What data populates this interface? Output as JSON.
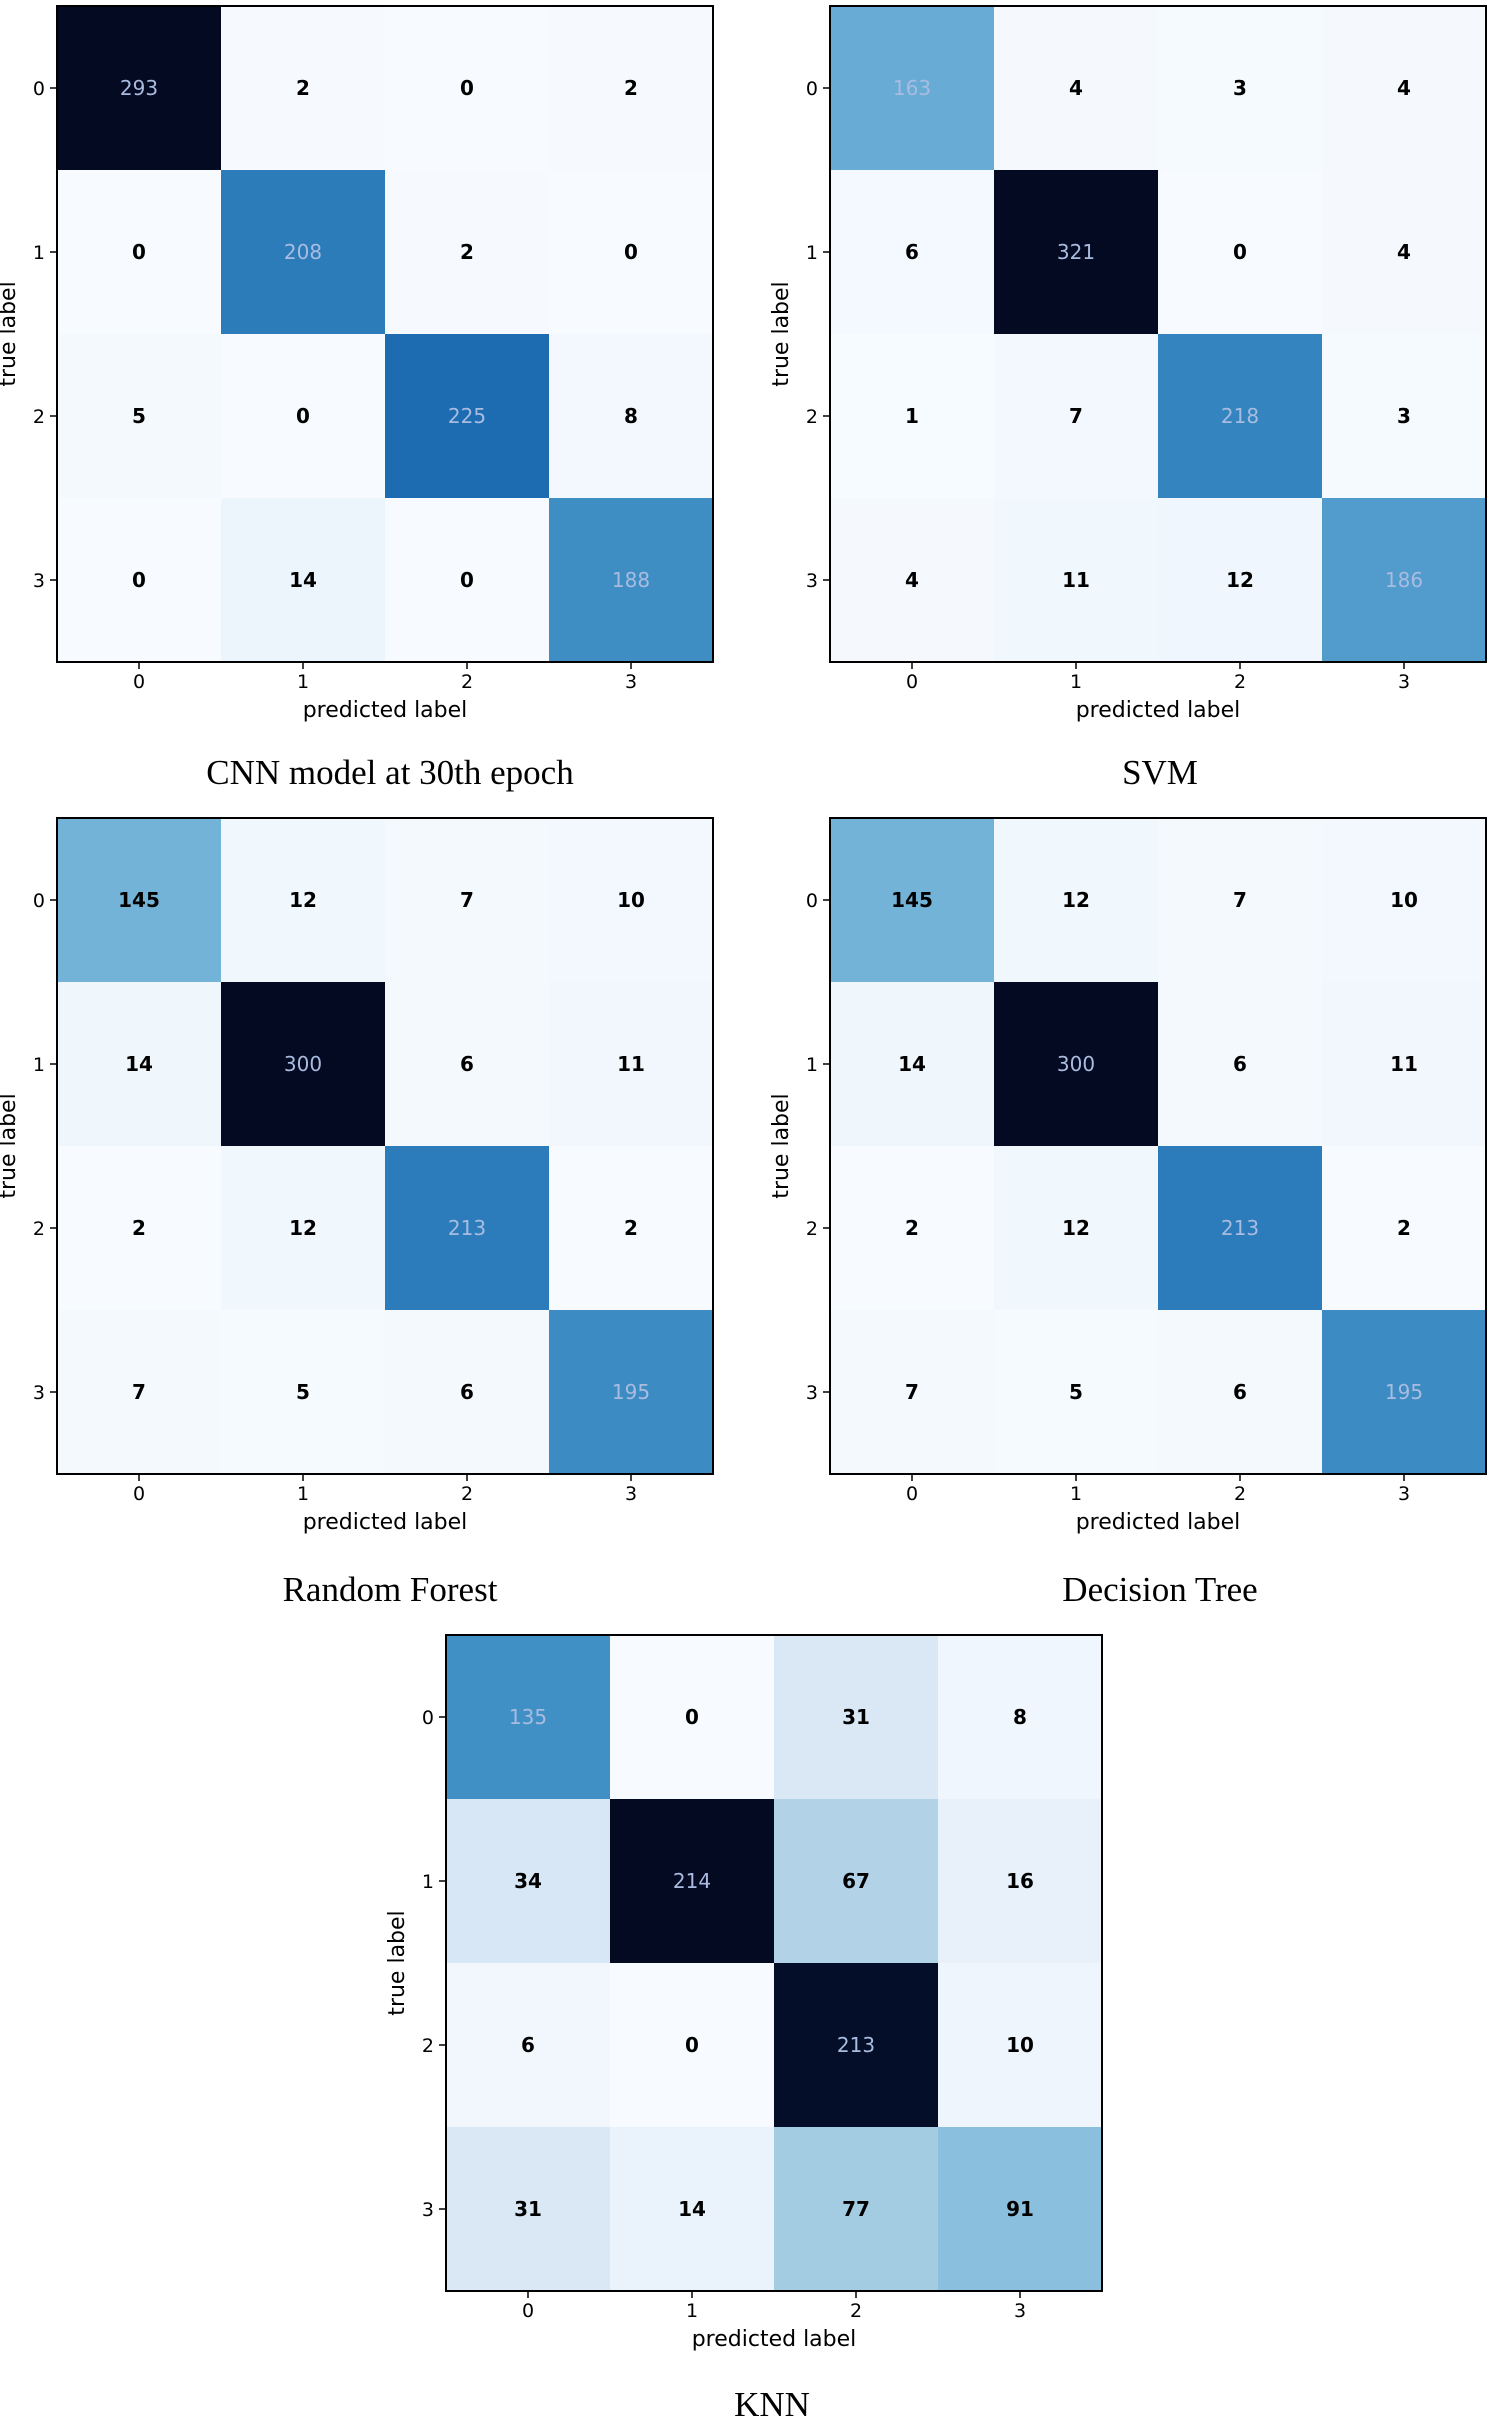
{
  "colors": {
    "cmap": "Blues",
    "light_text": "#a9bce0",
    "dark_text": "#000000",
    "frame": "#000000"
  },
  "chart_data": [
    {
      "type": "heatmap",
      "title": "CNN model at 30th epoch",
      "xlabel": "predicted label",
      "ylabel": "true label",
      "x_ticks": [
        "0",
        "1",
        "2",
        "3"
      ],
      "y_ticks": [
        "0",
        "1",
        "2",
        "3"
      ],
      "matrix": [
        [
          293,
          2,
          0,
          2
        ],
        [
          0,
          208,
          2,
          0
        ],
        [
          5,
          0,
          225,
          8
        ],
        [
          0,
          14,
          0,
          188
        ]
      ]
    },
    {
      "type": "heatmap",
      "title": "SVM",
      "xlabel": "predicted label",
      "ylabel": "true label",
      "x_ticks": [
        "0",
        "1",
        "2",
        "3"
      ],
      "y_ticks": [
        "0",
        "1",
        "2",
        "3"
      ],
      "matrix": [
        [
          163,
          4,
          3,
          4
        ],
        [
          6,
          321,
          0,
          4
        ],
        [
          1,
          7,
          218,
          3
        ],
        [
          4,
          11,
          12,
          186
        ]
      ]
    },
    {
      "type": "heatmap",
      "title": "Random Forest",
      "xlabel": "predicted label",
      "ylabel": "true label",
      "x_ticks": [
        "0",
        "1",
        "2",
        "3"
      ],
      "y_ticks": [
        "0",
        "1",
        "2",
        "3"
      ],
      "matrix": [
        [
          145,
          12,
          7,
          10
        ],
        [
          14,
          300,
          6,
          11
        ],
        [
          2,
          12,
          213,
          2
        ],
        [
          7,
          5,
          6,
          195
        ]
      ]
    },
    {
      "type": "heatmap",
      "title": "Decision Tree",
      "xlabel": "predicted label",
      "ylabel": "true label",
      "x_ticks": [
        "0",
        "1",
        "2",
        "3"
      ],
      "y_ticks": [
        "0",
        "1",
        "2",
        "3"
      ],
      "matrix": [
        [
          145,
          12,
          7,
          10
        ],
        [
          14,
          300,
          6,
          11
        ],
        [
          2,
          12,
          213,
          2
        ],
        [
          7,
          5,
          6,
          195
        ]
      ]
    },
    {
      "type": "heatmap",
      "title": "KNN",
      "xlabel": "predicted label",
      "ylabel": "true label",
      "x_ticks": [
        "0",
        "1",
        "2",
        "3"
      ],
      "y_ticks": [
        "0",
        "1",
        "2",
        "3"
      ],
      "matrix": [
        [
          135,
          0,
          31,
          8
        ],
        [
          34,
          214,
          67,
          16
        ],
        [
          6,
          0,
          213,
          10
        ],
        [
          31,
          14,
          77,
          91
        ]
      ]
    }
  ]
}
